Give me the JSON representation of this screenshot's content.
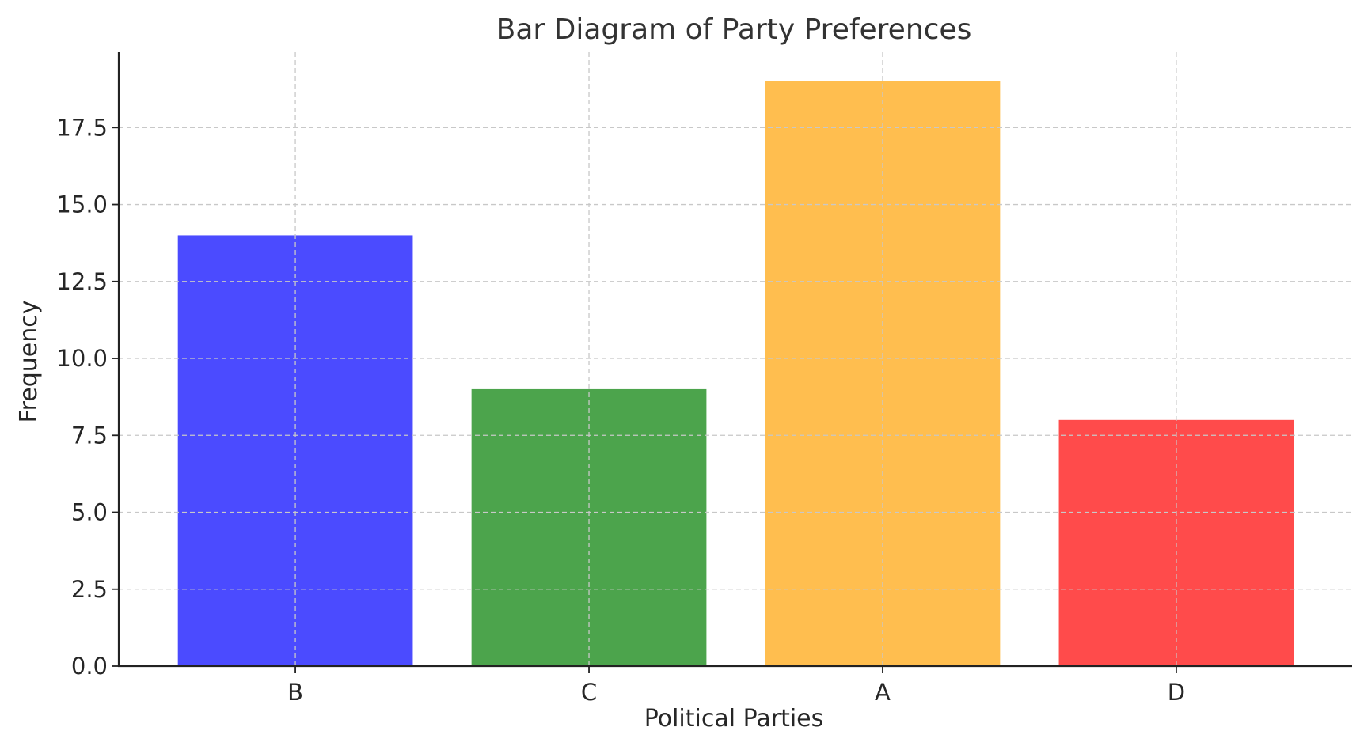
{
  "chart_data": {
    "type": "bar",
    "title": "Bar Diagram of Party Preferences",
    "xlabel": "Political Parties",
    "ylabel": "Frequency",
    "categories": [
      "B",
      "C",
      "A",
      "D"
    ],
    "values": [
      14,
      9,
      19,
      8
    ],
    "colors": [
      "#4b4bff",
      "#4ca44c",
      "#ffbe4f",
      "#ff4b4b"
    ],
    "ylim": [
      0,
      19.95
    ],
    "yticks": [
      0,
      2.5,
      5,
      7.5,
      10,
      12.5,
      15,
      17.5
    ],
    "ytick_labels": [
      "0.0",
      "2.5",
      "5.0",
      "7.5",
      "10.0",
      "12.5",
      "15.0",
      "17.5"
    ],
    "grid": true,
    "legend": "none"
  }
}
